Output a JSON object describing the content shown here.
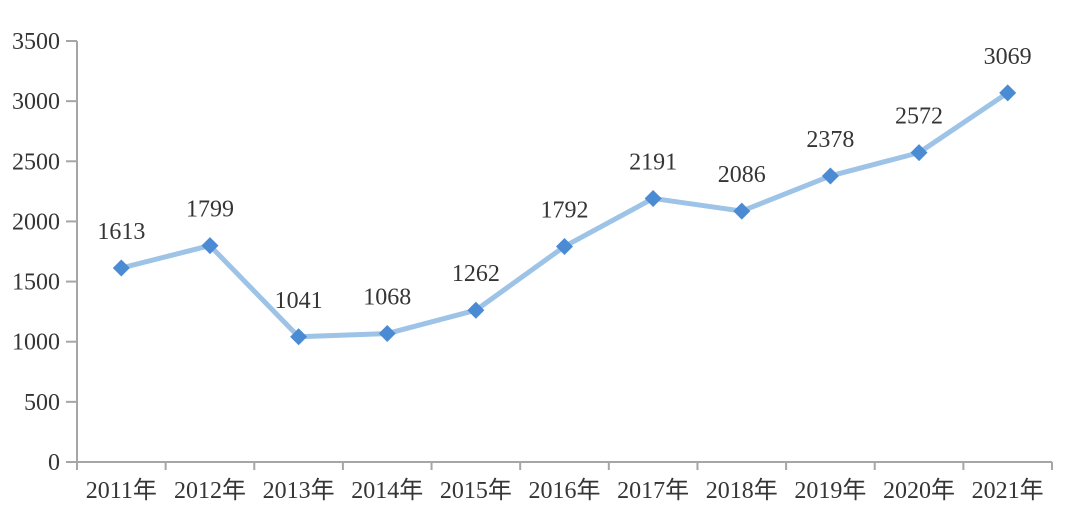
{
  "chart_data": {
    "type": "line",
    "title": "",
    "xlabel": "",
    "ylabel": "",
    "categories": [
      "2011年",
      "2012年",
      "2013年",
      "2014年",
      "2015年",
      "2016年",
      "2017年",
      "2018年",
      "2019年",
      "2020年",
      "2021年"
    ],
    "series": [
      {
        "name": "annual-value",
        "values": [
          1613,
          1799,
          1041,
          1068,
          1262,
          1792,
          2191,
          2086,
          2378,
          2572,
          3069
        ]
      }
    ],
    "data_labels": [
      "1613",
      "1799",
      "1041",
      "1068",
      "1262",
      "1792",
      "2191",
      "2086",
      "2378",
      "2572",
      "3069"
    ],
    "ylim": [
      0,
      3500
    ],
    "yticks": [
      0,
      500,
      1000,
      1500,
      2000,
      2500,
      3000,
      3500
    ],
    "ytick_labels": [
      "0",
      "500",
      "1000",
      "1500",
      "2000",
      "2500",
      "3000",
      "3500"
    ],
    "grid": false,
    "legend": null,
    "marker_shape": "diamond",
    "colors": {
      "line": "#9DC3E6",
      "marker": "#4A8BD4",
      "axis": "#A6A6A6",
      "tick": "#A6A6A6",
      "label_text": "#353535",
      "background": "#FFFFFF"
    }
  }
}
